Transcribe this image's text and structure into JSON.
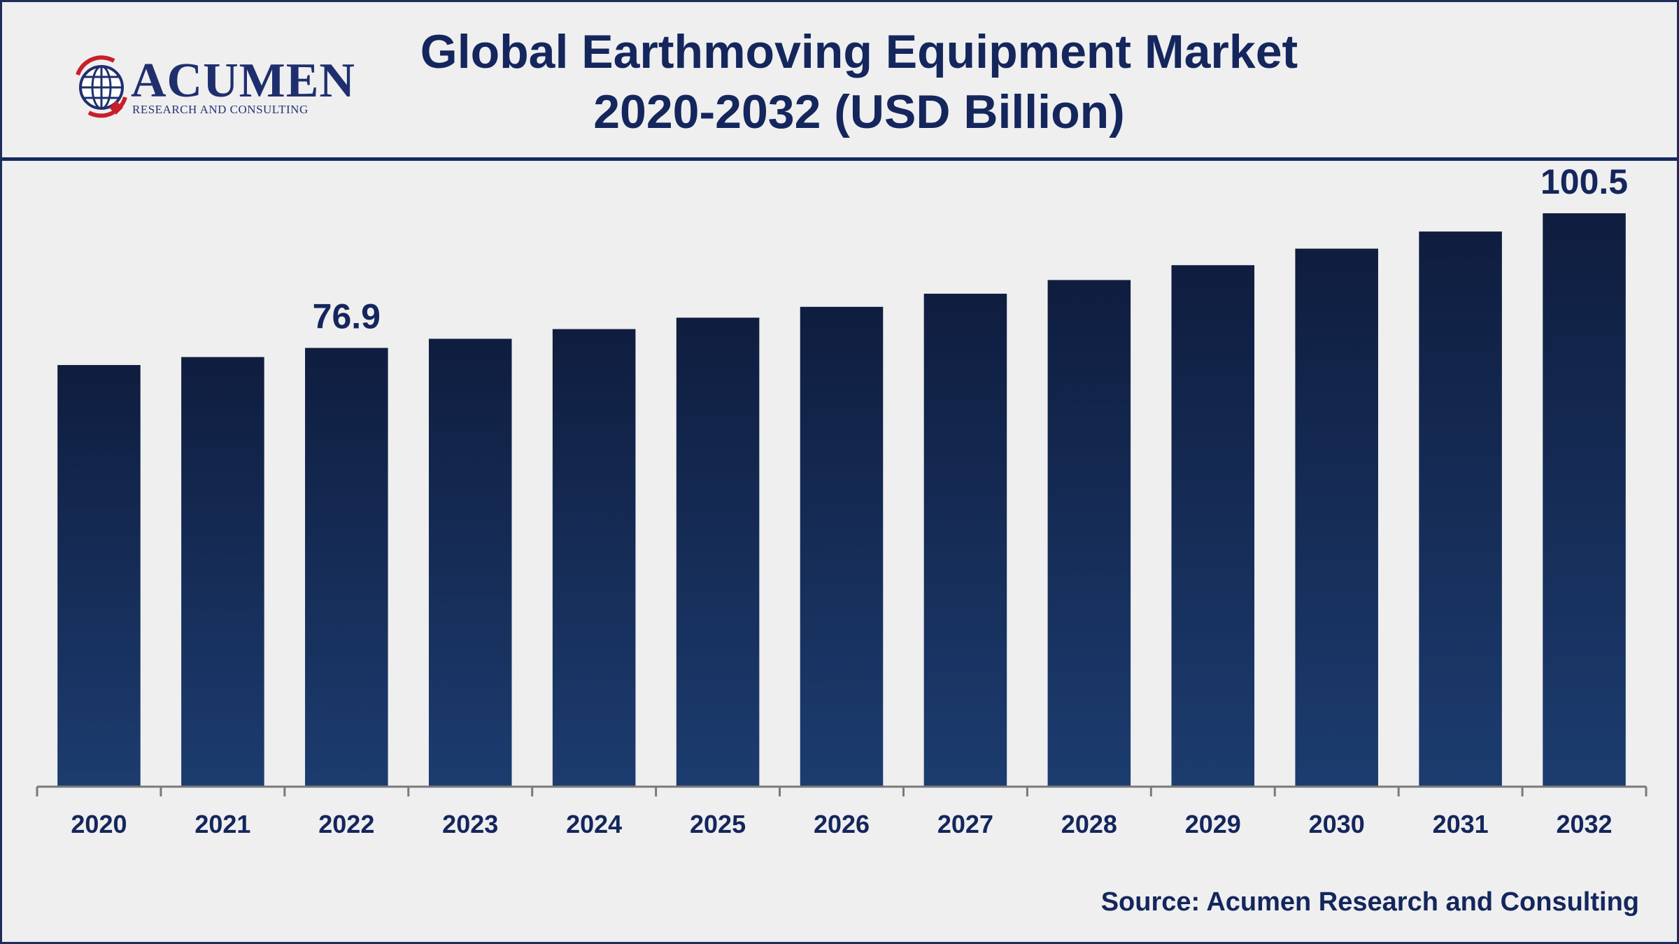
{
  "header": {
    "title_line1": "Global Earthmoving Equipment Market",
    "title_line2": "2020-2032 (USD Billion)"
  },
  "logo": {
    "wordmark": "ACUMEN",
    "tagline": "RESEARCH AND CONSULTING"
  },
  "footer": {
    "source": "Source: Acumen Research and Consulting"
  },
  "colors": {
    "bar_top": "#0f1d3f",
    "bar_bottom": "#1c3c6f",
    "text": "#14265c",
    "axis": "#7a7a7a"
  },
  "chart_data": {
    "type": "bar",
    "title": "Global Earthmoving Equipment Market 2020-2032 (USD Billion)",
    "categories": [
      "2020",
      "2021",
      "2022",
      "2023",
      "2024",
      "2025",
      "2026",
      "2027",
      "2028",
      "2029",
      "2030",
      "2031",
      "2032"
    ],
    "values": [
      73.9,
      75.3,
      76.9,
      78.5,
      80.2,
      82.2,
      84.1,
      86.4,
      88.8,
      91.4,
      94.3,
      97.3,
      100.5
    ],
    "data_labels": [
      {
        "category": "2022",
        "text": "76.9"
      },
      {
        "category": "2032",
        "text": "100.5"
      }
    ],
    "xlabel": "",
    "ylabel": "",
    "ylim": [
      0,
      113
    ],
    "grid": false,
    "legend": "none"
  }
}
